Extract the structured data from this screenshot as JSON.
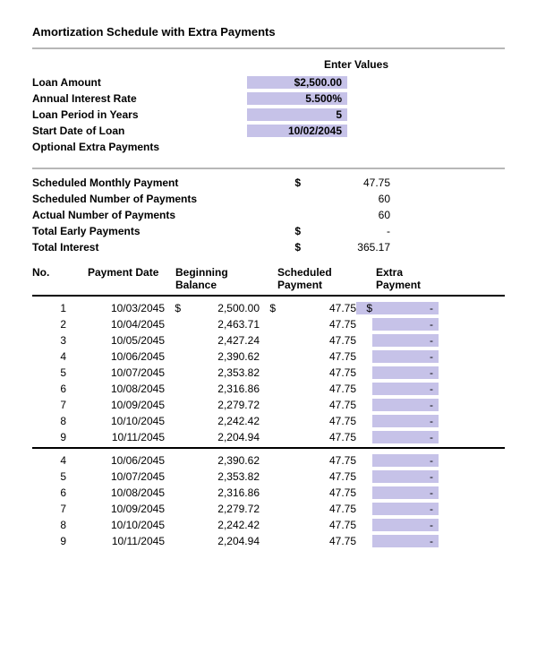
{
  "title": "Amortization Schedule with Extra Payments",
  "inputs": {
    "header": "Enter Values",
    "rows": [
      {
        "label": "Loan Amount",
        "value": "$2,500.00"
      },
      {
        "label": "Annual Interest Rate",
        "value": "5.500%"
      },
      {
        "label": "Loan Period in Years",
        "value": "5"
      },
      {
        "label": "Start Date of Loan",
        "value": "10/02/2045"
      },
      {
        "label": "Optional Extra Payments",
        "value": ""
      }
    ],
    "highlight_color": "#c6c2e8"
  },
  "summary": {
    "rows": [
      {
        "label": "Scheduled Monthly Payment",
        "sym": "$",
        "value": "47.75"
      },
      {
        "label": "Scheduled Number of Payments",
        "sym": "",
        "value": "60"
      },
      {
        "label": "Actual Number of Payments",
        "sym": "",
        "value": "60"
      },
      {
        "label": "Total Early Payments",
        "sym": "$",
        "value": "-"
      },
      {
        "label": "Total Interest",
        "sym": "$",
        "value": "365.17"
      }
    ]
  },
  "table": {
    "headers": {
      "no": "No.",
      "date": "Payment Date",
      "balance": "Beginning Balance",
      "scheduled": "Scheduled Payment",
      "extra": "Extra Payment"
    },
    "group1": [
      {
        "no": "1",
        "date": "10/03/2045",
        "bsym": "$",
        "bal": "2,500.00",
        "ssym": "$",
        "sched": "47.75",
        "esym": "$",
        "extra": "-"
      },
      {
        "no": "2",
        "date": "10/04/2045",
        "bsym": "",
        "bal": "2,463.71",
        "ssym": "",
        "sched": "47.75",
        "esym": "",
        "extra": "-"
      },
      {
        "no": "3",
        "date": "10/05/2045",
        "bsym": "",
        "bal": "2,427.24",
        "ssym": "",
        "sched": "47.75",
        "esym": "",
        "extra": "-"
      },
      {
        "no": "4",
        "date": "10/06/2045",
        "bsym": "",
        "bal": "2,390.62",
        "ssym": "",
        "sched": "47.75",
        "esym": "",
        "extra": "-"
      },
      {
        "no": "5",
        "date": "10/07/2045",
        "bsym": "",
        "bal": "2,353.82",
        "ssym": "",
        "sched": "47.75",
        "esym": "",
        "extra": "-"
      },
      {
        "no": "6",
        "date": "10/08/2045",
        "bsym": "",
        "bal": "2,316.86",
        "ssym": "",
        "sched": "47.75",
        "esym": "",
        "extra": "-"
      },
      {
        "no": "7",
        "date": "10/09/2045",
        "bsym": "",
        "bal": "2,279.72",
        "ssym": "",
        "sched": "47.75",
        "esym": "",
        "extra": "-"
      },
      {
        "no": "8",
        "date": "10/10/2045",
        "bsym": "",
        "bal": "2,242.42",
        "ssym": "",
        "sched": "47.75",
        "esym": "",
        "extra": "-"
      },
      {
        "no": "9",
        "date": "10/11/2045",
        "bsym": "",
        "bal": "2,204.94",
        "ssym": "",
        "sched": "47.75",
        "esym": "",
        "extra": "-"
      }
    ],
    "group2": [
      {
        "no": "4",
        "date": "10/06/2045",
        "bal": "2,390.62",
        "sched": "47.75",
        "extra": "-"
      },
      {
        "no": "5",
        "date": "10/07/2045",
        "bal": "2,353.82",
        "sched": "47.75",
        "extra": "-"
      },
      {
        "no": "6",
        "date": "10/08/2045",
        "bal": "2,316.86",
        "sched": "47.75",
        "extra": "-"
      },
      {
        "no": "7",
        "date": "10/09/2045",
        "bal": "2,279.72",
        "sched": "47.75",
        "extra": "-"
      },
      {
        "no": "8",
        "date": "10/10/2045",
        "bal": "2,242.42",
        "sched": "47.75",
        "extra": "-"
      },
      {
        "no": "9",
        "date": "10/11/2045",
        "bal": "2,204.94",
        "sched": "47.75",
        "extra": "-"
      }
    ]
  },
  "colors": {
    "divider": "#b7b7b7",
    "highlight": "#c6c2e8",
    "text": "#000000",
    "background": "#ffffff"
  }
}
